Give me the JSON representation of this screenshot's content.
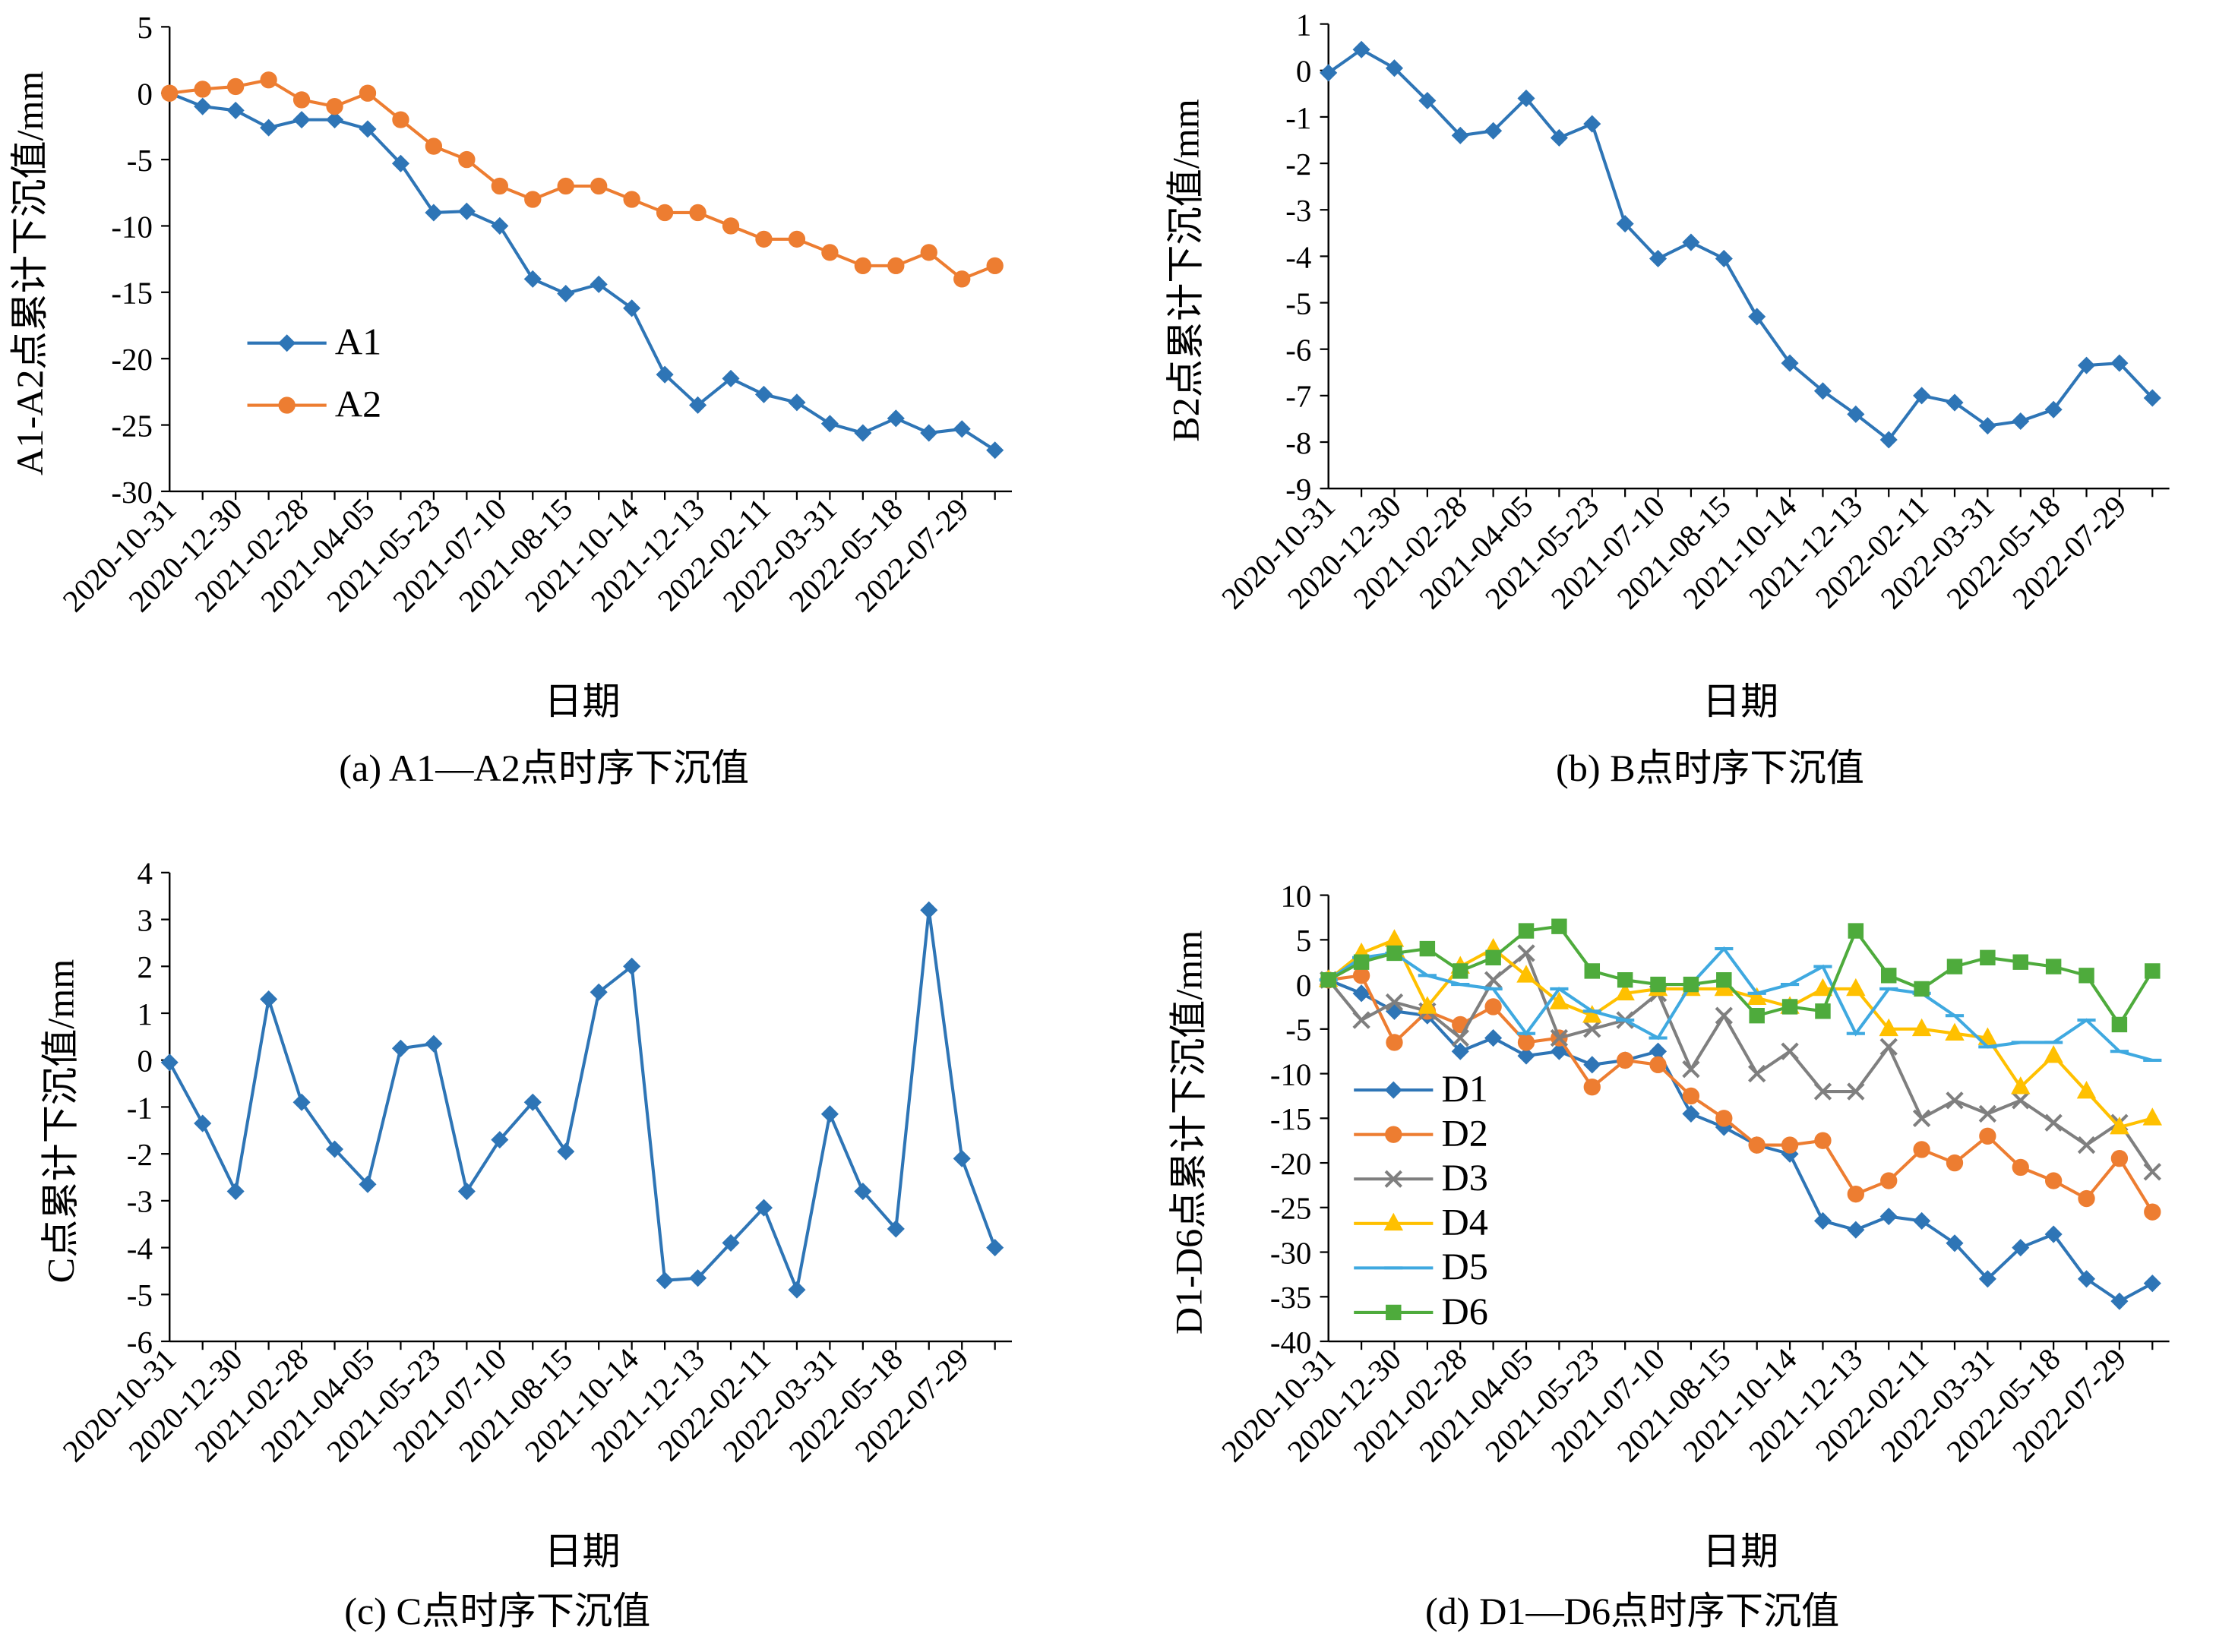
{
  "chart_data": [
    {
      "type": "line",
      "title": "(a) A1—A2点时序下沉值",
      "xlabel": "日期",
      "ylabel": "A1-A2点累计下沉值/mm",
      "categories": [
        "2020-10-31",
        null,
        "2020-12-30",
        null,
        "2021-02-28",
        null,
        "2021-04-05",
        null,
        "2021-05-23",
        null,
        "2021-07-10",
        null,
        "2021-08-15",
        null,
        "2021-10-14",
        null,
        "2021-12-13",
        null,
        "2022-02-11",
        null,
        "2022-03-31",
        null,
        "2022-05-18",
        null,
        "2022-07-29",
        null
      ],
      "series": [
        {
          "name": "A1",
          "color": "#2e75b6",
          "marker": "diamond",
          "values": [
            0,
            -1,
            -1.3,
            -2.6,
            -2,
            -2,
            -2.7,
            -5.3,
            -9,
            -8.9,
            -10,
            -14,
            -15.1,
            -14.4,
            -16.2,
            -21.2,
            -23.5,
            -21.5,
            -22.7,
            -23.3,
            -24.9,
            -25.6,
            -24.5,
            -25.6,
            -25.3,
            -26.9
          ]
        },
        {
          "name": "A2",
          "color": "#ed7d31",
          "marker": "circle",
          "values": [
            0,
            0.3,
            0.5,
            1,
            -0.5,
            -1,
            0,
            -2,
            -4,
            -5,
            -7,
            -8,
            -7,
            -7,
            -8,
            -9,
            -9,
            -10,
            -11,
            -11,
            -12,
            -13,
            -13,
            -12,
            -14,
            -13
          ]
        }
      ],
      "ylim": [
        -30,
        5
      ],
      "yticks": [
        5,
        0,
        -5,
        -10,
        -15,
        -20,
        -25,
        -30
      ],
      "legend": "center left"
    },
    {
      "type": "line",
      "title": "(b) B点时序下沉值",
      "xlabel": "日期",
      "ylabel": "B2点累计下沉值/mm",
      "categories": [
        "2020-10-31",
        null,
        "2020-12-30",
        null,
        "2021-02-28",
        null,
        "2021-04-05",
        null,
        "2021-05-23",
        null,
        "2021-07-10",
        null,
        "2021-08-15",
        null,
        "2021-10-14",
        null,
        "2021-12-13",
        null,
        "2022-02-11",
        null,
        "2022-03-31",
        null,
        "2022-05-18",
        null,
        "2022-07-29",
        null
      ],
      "series": [
        {
          "color": "#2e75b6",
          "marker": "diamond",
          "values": [
            -0.05,
            0.45,
            0.05,
            -0.65,
            -1.4,
            -1.3,
            -0.6,
            -1.45,
            -1.15,
            -3.3,
            -4.05,
            -3.7,
            -4.05,
            -5.3,
            -6.3,
            -6.9,
            -7.4,
            -7.95,
            -7.0,
            -7.15,
            -7.65,
            -7.55,
            -7.3,
            -6.35,
            -6.3,
            -7.05
          ]
        }
      ],
      "ylim": [
        -9,
        1
      ],
      "yticks": [
        1,
        0,
        -1,
        -2,
        -3,
        -4,
        -5,
        -6,
        -7,
        -8,
        -9
      ]
    },
    {
      "type": "line",
      "title": "(c) C点时序下沉值",
      "xlabel": "日期",
      "ylabel": "C点累计下沉值/mm",
      "categories": [
        "2020-10-31",
        null,
        "2020-12-30",
        null,
        "2021-02-28",
        null,
        "2021-04-05",
        null,
        "2021-05-23",
        null,
        "2021-07-10",
        null,
        "2021-08-15",
        null,
        "2021-10-14",
        null,
        "2021-12-13",
        null,
        "2022-02-11",
        null,
        "2022-03-31",
        null,
        "2022-05-18",
        null,
        "2022-07-29",
        null
      ],
      "series": [
        {
          "color": "#2e75b6",
          "marker": "diamond",
          "values": [
            -0.05,
            -1.35,
            -2.8,
            1.3,
            -0.9,
            -1.9,
            -2.65,
            0.25,
            0.35,
            -2.8,
            -1.7,
            -0.9,
            -1.95,
            1.45,
            2.0,
            -4.7,
            -4.65,
            -3.9,
            -3.15,
            -4.9,
            -1.15,
            -2.8,
            -3.6,
            3.2,
            -2.1,
            -4.0
          ]
        }
      ],
      "ylim": [
        -6,
        4
      ],
      "yticks": [
        4,
        3,
        2,
        1,
        0,
        -1,
        -2,
        -3,
        -4,
        -5,
        -6
      ]
    },
    {
      "type": "line",
      "title": "(d) D1—D6点时序下沉值",
      "xlabel": "日期",
      "ylabel": "D1-D6点累计下沉值/mm",
      "categories": [
        "2020-10-31",
        null,
        "2020-12-30",
        null,
        "2021-02-28",
        null,
        "2021-04-05",
        null,
        "2021-05-23",
        null,
        "2021-07-10",
        null,
        "2021-08-15",
        null,
        "2021-10-14",
        null,
        "2021-12-13",
        null,
        "2022-02-11",
        null,
        "2022-03-31",
        null,
        "2022-05-18",
        null,
        "2022-07-29",
        null
      ],
      "series": [
        {
          "name": "D1",
          "color": "#2e75b6",
          "marker": "diamond",
          "values": [
            0.5,
            -1,
            -3,
            -3.5,
            -7.5,
            -6,
            -8,
            -7.5,
            -9,
            -8.5,
            -7.5,
            -14.5,
            -16,
            -18,
            -19,
            -26.5,
            -27.5,
            -26,
            -26.5,
            -29,
            -33,
            -29.5,
            -28,
            -33,
            -35.5,
            -33.5
          ]
        },
        {
          "name": "D2",
          "color": "#ed7d31",
          "marker": "circle",
          "values": [
            0.5,
            1,
            -6.5,
            -3,
            -4.5,
            -2.5,
            -6.5,
            -6,
            -11.5,
            -8.5,
            -9,
            -12.5,
            -15,
            -18,
            -18,
            -17.5,
            -23.5,
            -22,
            -18.5,
            -20,
            -17,
            -20.5,
            -22,
            -24,
            -19.5,
            -25.5
          ]
        },
        {
          "name": "D3",
          "color": "#7f7f7f",
          "marker": "x",
          "values": [
            0.5,
            -4,
            -2,
            -3,
            -6,
            0.5,
            3.5,
            -6,
            -5,
            -4,
            -1,
            -9.5,
            -3.5,
            -10,
            -7.5,
            -12,
            -12,
            -7,
            -15,
            -13,
            -14.5,
            -13,
            -15.5,
            -18,
            -15.5,
            -21
          ]
        },
        {
          "name": "D4",
          "color": "#ffc000",
          "marker": "triangle",
          "values": [
            0.5,
            3.5,
            5,
            -2.5,
            2,
            4,
            1,
            -2,
            -3.5,
            -1,
            -0.5,
            -0.5,
            -0.5,
            -1.5,
            -2.5,
            -0.5,
            -0.5,
            -5,
            -5,
            -5.5,
            -6,
            -11.5,
            -8,
            -12,
            -16,
            -15
          ]
        },
        {
          "name": "D5",
          "color": "#3fa9e0",
          "marker": "dash",
          "values": [
            0.5,
            3,
            3.5,
            1,
            0,
            -0.5,
            -5.5,
            -0.5,
            -3,
            -4,
            -6,
            0,
            4,
            -1,
            0,
            2,
            -5.5,
            -0.5,
            -1,
            -3.5,
            -7,
            -6.5,
            -6.5,
            -4,
            -7.5,
            -8.5
          ]
        },
        {
          "name": "D6",
          "color": "#4eab3c",
          "marker": "square",
          "values": [
            0.5,
            2.5,
            3.5,
            4,
            1.5,
            3,
            6,
            6.5,
            1.5,
            0.5,
            0,
            0,
            0.5,
            -3.5,
            -2.5,
            -3,
            6,
            1,
            -0.5,
            2,
            3,
            2.5,
            2,
            1,
            -4.5,
            1.5
          ]
        }
      ],
      "ylim": [
        -40,
        10
      ],
      "yticks": [
        10,
        5,
        0,
        -5,
        -10,
        -15,
        -20,
        -25,
        -30,
        -35,
        -40
      ],
      "legend": "lower left"
    }
  ]
}
